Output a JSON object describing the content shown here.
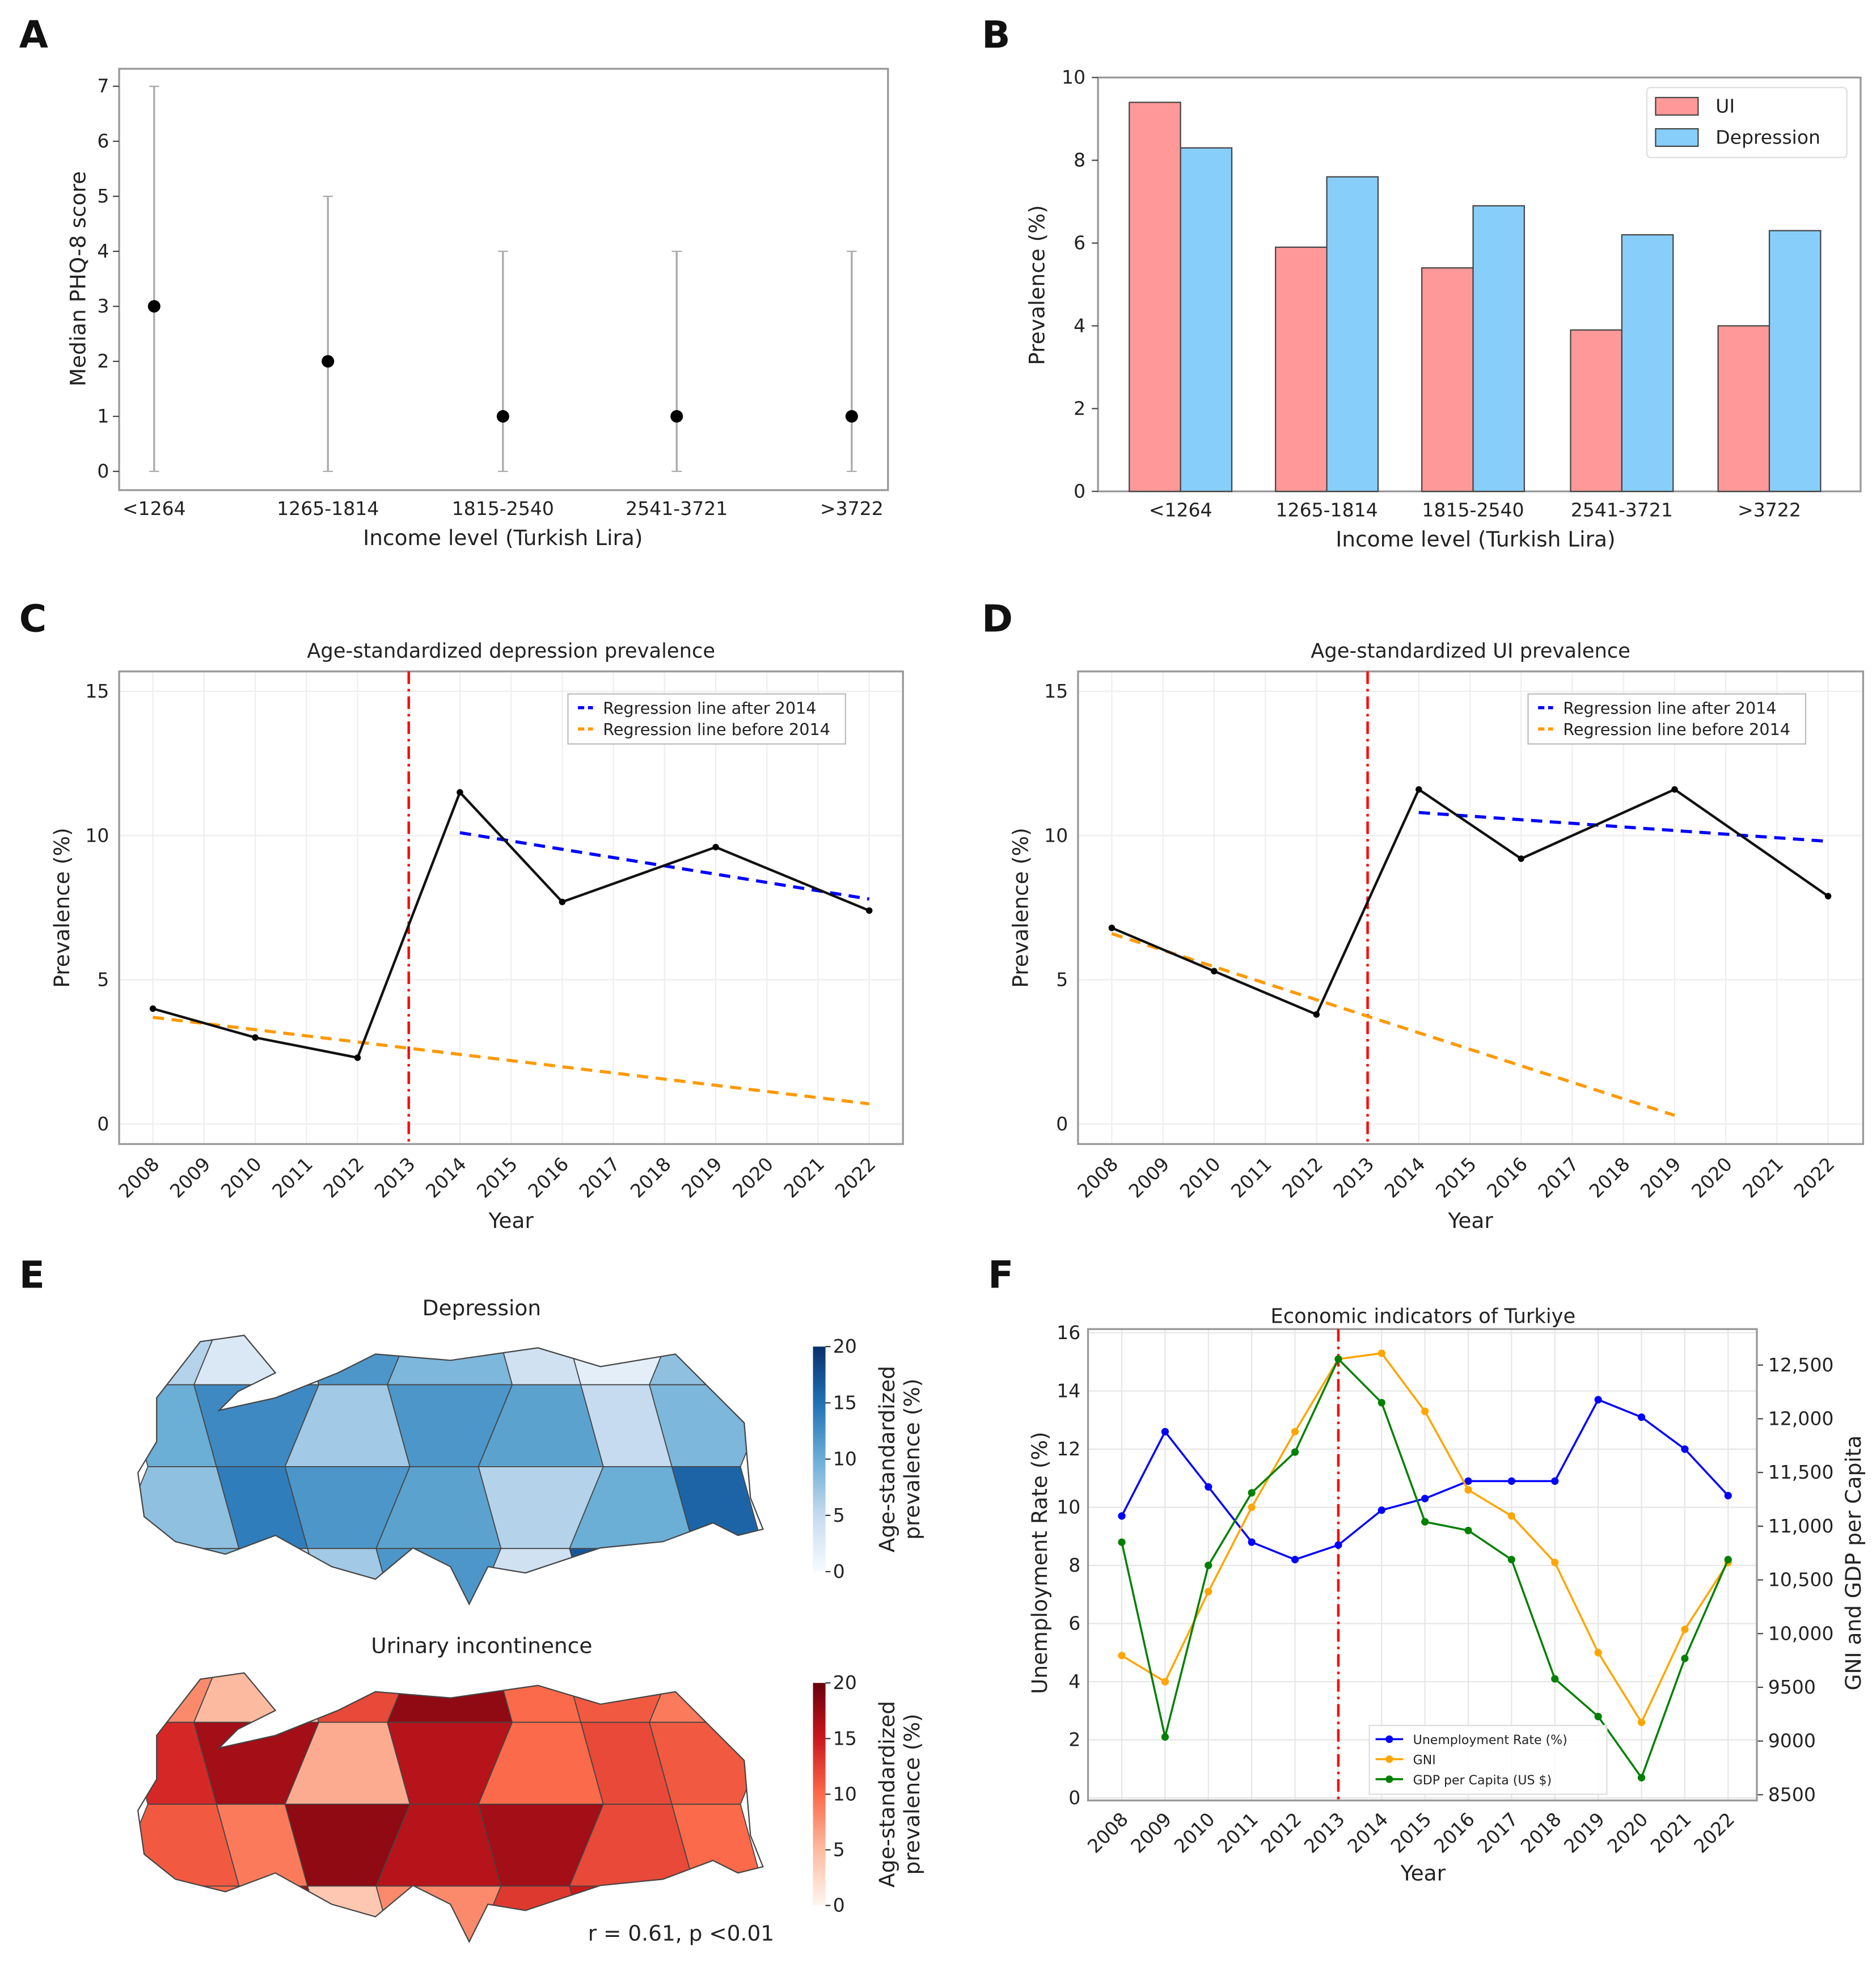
{
  "panel_labels": [
    "A",
    "B",
    "C",
    "D",
    "E",
    "F"
  ],
  "chart_data": [
    {
      "id": "A",
      "type": "scatter",
      "title": "",
      "xlabel": "Income level (Turkish Lira)",
      "ylabel": "Median PHQ-8 score",
      "categories": [
        "<1264",
        "1265-1814",
        "1815-2540",
        "2541-3721",
        ">3722"
      ],
      "median": [
        3,
        2,
        1,
        1,
        1
      ],
      "range_low": [
        0,
        0,
        0,
        0,
        0
      ],
      "range_high": [
        7,
        5,
        4,
        4,
        4
      ],
      "yticks": [
        0,
        1,
        2,
        3,
        4,
        5,
        6,
        7
      ],
      "ylim": [
        -0.3,
        7.3
      ]
    },
    {
      "id": "B",
      "type": "bar",
      "xlabel": "Income level (Turkish Lira)",
      "ylabel": "Prevalence (%)",
      "categories": [
        "<1264",
        "1265-1814",
        "1815-2540",
        "2541-3721",
        ">3722"
      ],
      "series": [
        {
          "name": "UI",
          "values": [
            9.4,
            5.9,
            5.4,
            3.9,
            4.0
          ],
          "color": "#ff9999"
        },
        {
          "name": "Depression",
          "values": [
            8.3,
            7.6,
            6.9,
            6.2,
            6.3
          ],
          "color": "#87cefa"
        }
      ],
      "yticks": [
        0,
        2,
        4,
        6,
        8,
        10
      ],
      "ylim": [
        0,
        10
      ],
      "legend": "top-right"
    },
    {
      "id": "C",
      "type": "line",
      "title": "Age-standardized depression prevalence",
      "xlabel": "Year",
      "ylabel": "Prevalence (%)",
      "xticks": [
        "2008",
        "2009",
        "2010",
        "2011",
        "2012",
        "2013",
        "2014",
        "2015",
        "2016",
        "2017",
        "2018",
        "2019",
        "2020",
        "2021",
        "2022"
      ],
      "x": [
        2008,
        2010,
        2012,
        2014,
        2016,
        2019,
        2022
      ],
      "y": [
        4.0,
        3.0,
        2.3,
        11.5,
        7.7,
        9.6,
        7.4
      ],
      "regression_after": {
        "name": "Regression line after 2014",
        "x": [
          2014,
          2022
        ],
        "y": [
          10.1,
          7.8
        ],
        "color": "#0000ff"
      },
      "regression_before": {
        "name": "Regression line before 2014",
        "x": [
          2008,
          2022
        ],
        "y": [
          3.7,
          0.7
        ],
        "color": "#ff9900"
      },
      "vline": 2013,
      "yticks": [
        0,
        5,
        10,
        15
      ],
      "ylim": [
        -0.7,
        16
      ]
    },
    {
      "id": "D",
      "type": "line",
      "title": "Age-standardized UI prevalence",
      "xlabel": "Year",
      "ylabel": "Prevalence (%)",
      "xticks": [
        "2008",
        "2009",
        "2010",
        "2011",
        "2012",
        "2013",
        "2014",
        "2015",
        "2016",
        "2017",
        "2018",
        "2019",
        "2020",
        "2021",
        "2022"
      ],
      "x": [
        2008,
        2010,
        2012,
        2014,
        2016,
        2019,
        2022
      ],
      "y": [
        6.8,
        5.3,
        3.8,
        11.6,
        9.2,
        11.6,
        7.9
      ],
      "regression_after": {
        "name": "Regression line after 2014",
        "x": [
          2014,
          2022
        ],
        "y": [
          10.8,
          9.8
        ],
        "color": "#0000ff"
      },
      "regression_before": {
        "name": "Regression line before 2014",
        "x": [
          2008,
          2019
        ],
        "y": [
          6.6,
          0.3
        ],
        "color": "#ff9900"
      },
      "vline": 2013,
      "yticks": [
        0,
        5,
        10,
        15
      ],
      "ylim": [
        -0.7,
        16
      ]
    },
    {
      "id": "E",
      "type": "heatmap",
      "maps": [
        {
          "title": "Depression",
          "colorbar_label": "Age-standardized prevalence (%)",
          "cmap": "Blues",
          "region_values": [
            6,
            3,
            12,
            9,
            4,
            2,
            8,
            10,
            13,
            7,
            12,
            11,
            5,
            9,
            8,
            14,
            12,
            11,
            6,
            10,
            16,
            9,
            5,
            7,
            12,
            4,
            17,
            8
          ]
        },
        {
          "title": "Urinary incontinence",
          "colorbar_label": "Age-standardized prevalence (%)",
          "cmap": "Reds",
          "region_values": [
            8,
            5,
            12,
            18,
            10,
            11,
            9,
            14,
            17,
            6,
            16,
            10,
            12,
            11,
            11,
            9,
            18,
            16,
            17,
            12,
            10,
            10,
            17,
            4,
            8,
            13,
            15,
            11
          ]
        }
      ],
      "colorbar_ticks": [
        0,
        5,
        10,
        15,
        20
      ],
      "annotation": "r = 0.61, p <0.01"
    },
    {
      "id": "F",
      "type": "line",
      "title": "Economic indicators of Turkiye",
      "xlabel": "Year",
      "ylabel": "Unemployment Rate (%)",
      "ylabel_right": "GNI and GDP per Capita",
      "xticks": [
        "2008",
        "2009",
        "2010",
        "2011",
        "2012",
        "2013",
        "2014",
        "2015",
        "2016",
        "2017",
        "2018",
        "2019",
        "2020",
        "2021",
        "2022"
      ],
      "yticks": [
        0,
        2,
        4,
        6,
        8,
        10,
        12,
        14,
        16
      ],
      "ylim": [
        0,
        16
      ],
      "yticks_right": [
        "8500",
        "9000",
        "9500",
        "10,000",
        "10,500",
        "11,000",
        "11,500",
        "12,000",
        "12,500"
      ],
      "yticks_right_values": [
        8500,
        9000,
        9500,
        10000,
        10500,
        11000,
        11500,
        12000,
        12500
      ],
      "ylim_right": [
        8470,
        12800
      ],
      "vline": 2013,
      "series": [
        {
          "name": "Unemployment Rate (%)",
          "axis": "left",
          "color": "#0000ff",
          "values": [
            9.7,
            12.6,
            10.7,
            8.8,
            8.2,
            8.7,
            9.9,
            10.3,
            10.9,
            10.9,
            10.9,
            13.7,
            13.1,
            12.0,
            10.4
          ]
        },
        {
          "name": "GNI",
          "axis": "right",
          "color": "#ffa500",
          "values": [
            9796,
            9552,
            10391,
            11176,
            11880,
            12556,
            12610,
            12069,
            11338,
            11095,
            10662,
            9823,
            9174,
            10039,
            10662
          ]
        },
        {
          "name": "GDP per Capita (US $)",
          "axis": "right",
          "color": "#008000",
          "values": [
            10851,
            9038,
            10635,
            11311,
            11690,
            12556,
            12150,
            11041,
            10960,
            10689,
            9579,
            9228,
            8659,
            9769,
            10689
          ]
        }
      ],
      "legend": "bottom-center"
    }
  ]
}
